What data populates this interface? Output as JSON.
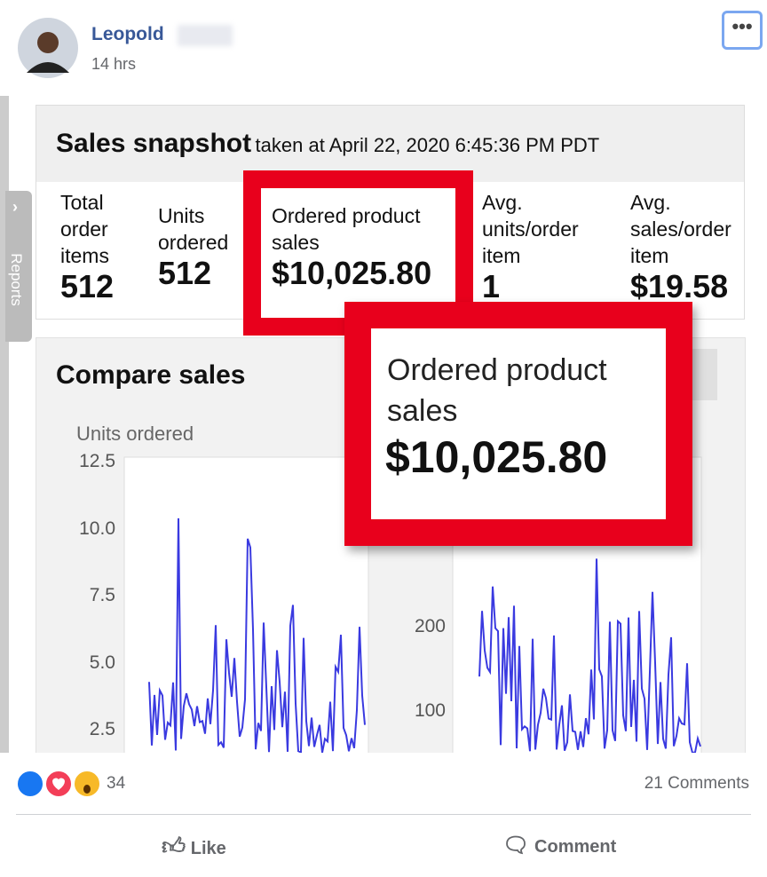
{
  "post": {
    "author": "Leopold",
    "time": "14 hrs"
  },
  "image": {
    "sidebar_tab": "Reports",
    "snapshot": {
      "title": "Sales snapshot",
      "subtitle": "taken at April 22, 2020 6:45:36 PM PDT",
      "metrics": [
        {
          "label": "Total order items",
          "value": "512"
        },
        {
          "label": "Units ordered",
          "value": "512"
        },
        {
          "label": "Ordered product sales",
          "value": "$10,025.80"
        },
        {
          "label": "Avg. units/order item",
          "value": "1"
        },
        {
          "label": "Avg. sales/order item",
          "value": "$19.58"
        }
      ]
    },
    "compare": {
      "title": "Compare sales",
      "left_axis_label": "Units ordered",
      "left_ticks": [
        "12.5",
        "10.0",
        "7.5",
        "5.0",
        "2.5"
      ],
      "right_ticks": [
        "200",
        "100"
      ]
    },
    "zoom": {
      "label": "Ordered product sales",
      "value": "$10,025.80"
    }
  },
  "footer": {
    "reaction_count": "34",
    "comments": "21 Comments",
    "actions": [
      "Like",
      "Comment"
    ]
  }
}
